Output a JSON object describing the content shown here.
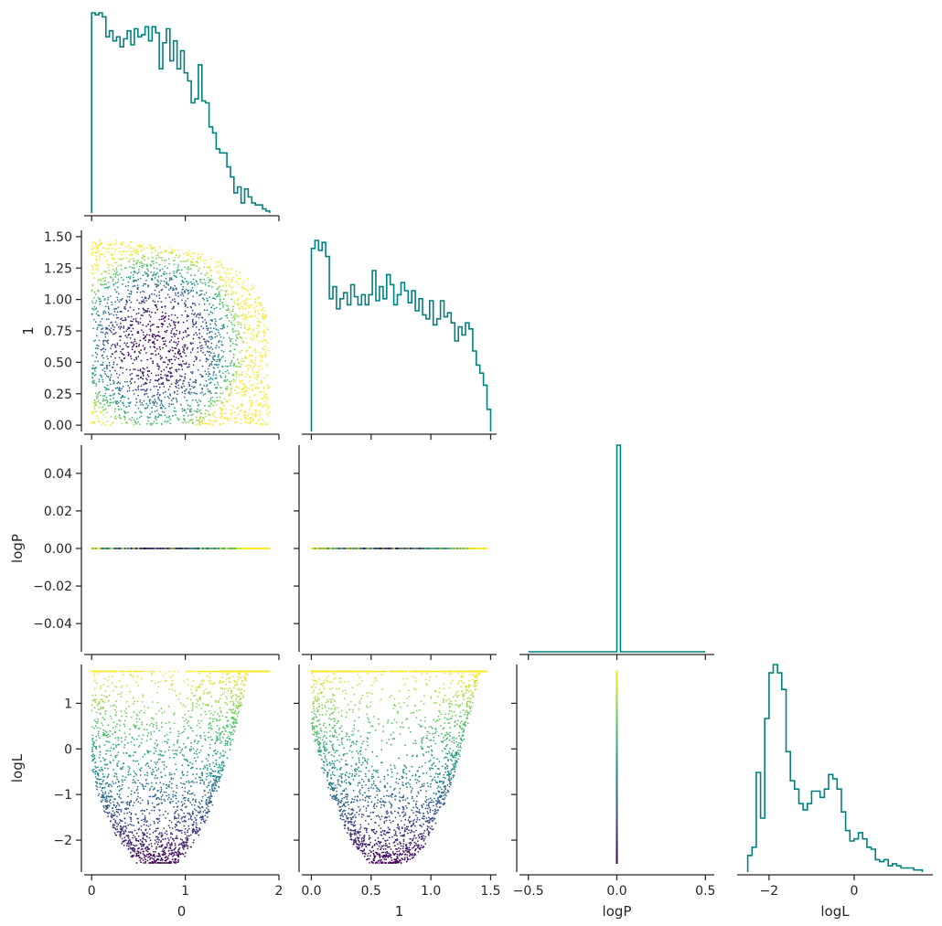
{
  "chart_data": {
    "type": "corner",
    "parameters": [
      "0",
      "1",
      "logP",
      "logL"
    ],
    "colors": {
      "histogram": "#008080",
      "colormap": "viridis",
      "colormap_stops": [
        "#440154",
        "#3b528b",
        "#21918c",
        "#5ec962",
        "#fde725"
      ],
      "color_by": "logL"
    },
    "grid": false,
    "axes": {
      "0": {
        "range": [
          -0.08,
          2.0
        ],
        "ticks": [
          0,
          1,
          2
        ],
        "tick_labels": [
          "0",
          "1",
          "2"
        ]
      },
      "1": {
        "range": [
          -0.08,
          1.55
        ],
        "ticks": [
          0.0,
          0.5,
          1.0,
          1.5
        ],
        "tick_labels": [
          "0.0",
          "0.5",
          "1.0",
          "1.5"
        ]
      },
      "logP": {
        "range": [
          -0.55,
          0.55
        ],
        "ticks": [
          -0.5,
          0.0,
          0.5
        ],
        "tick_labels": [
          "−0.5",
          "0.0",
          "0.5"
        ]
      },
      "logL": {
        "range": [
          -2.75,
          1.85
        ],
        "ticks": [
          -2,
          0
        ],
        "tick_labels": [
          "−2",
          "0"
        ]
      }
    },
    "y_axes": {
      "1": {
        "range": [
          -0.05,
          1.55
        ],
        "ticks": [
          0.0,
          0.25,
          0.5,
          0.75,
          1.0,
          1.25,
          1.5
        ],
        "tick_labels": [
          "0.00",
          "0.25",
          "0.50",
          "0.75",
          "1.00",
          "1.25",
          "1.50"
        ]
      },
      "logP": {
        "range": [
          -0.055,
          0.055
        ],
        "ticks": [
          -0.04,
          -0.02,
          0.0,
          0.02,
          0.04
        ],
        "tick_labels": [
          "−0.04",
          "−0.02",
          "0.00",
          "0.02",
          "0.04"
        ]
      },
      "logL": {
        "range": [
          -2.7,
          1.85
        ],
        "ticks": [
          -2,
          -1,
          0,
          1
        ],
        "tick_labels": [
          "−2",
          "−1",
          "0",
          "1"
        ]
      }
    },
    "diagonal_histograms": [
      {
        "param": "0",
        "bins": [
          0.0,
          1.9
        ],
        "counts": [
          1.0,
          0.99,
          1.0,
          0.98,
          0.88,
          0.91,
          0.86,
          0.88,
          0.83,
          0.87,
          0.91,
          0.84,
          0.92,
          0.88,
          0.89,
          0.93,
          0.86,
          0.93,
          0.9,
          0.72,
          0.85,
          0.92,
          0.76,
          0.86,
          0.72,
          0.81,
          0.7,
          0.66,
          0.55,
          0.57,
          0.74,
          0.56,
          0.55,
          0.43,
          0.4,
          0.32,
          0.3,
          0.3,
          0.23,
          0.18,
          0.1,
          0.13,
          0.05,
          0.12,
          0.08,
          0.05,
          0.04,
          0.04,
          0.02,
          0.01
        ]
      },
      {
        "param": "1",
        "bins": [
          0.0,
          1.5
        ],
        "counts": [
          0.91,
          0.95,
          0.9,
          0.94,
          0.87,
          0.66,
          0.72,
          0.61,
          0.66,
          0.69,
          0.63,
          0.73,
          0.67,
          0.63,
          0.68,
          0.63,
          0.68,
          0.8,
          0.65,
          0.72,
          0.66,
          0.78,
          0.73,
          0.63,
          0.68,
          0.74,
          0.7,
          0.64,
          0.7,
          0.6,
          0.66,
          0.58,
          0.56,
          0.65,
          0.53,
          0.56,
          0.65,
          0.57,
          0.59,
          0.54,
          0.45,
          0.52,
          0.48,
          0.54,
          0.51,
          0.4,
          0.33,
          0.29,
          0.23,
          0.11
        ]
      },
      {
        "param": "logP",
        "bins": [
          -0.5,
          0.5
        ],
        "counts": [
          0,
          0,
          0,
          0,
          0,
          0,
          0,
          0,
          0,
          0,
          0,
          0,
          0,
          0,
          0,
          0,
          0,
          0,
          0,
          0,
          0,
          0,
          0,
          0,
          0,
          1.0,
          0,
          0,
          0,
          0,
          0,
          0,
          0,
          0,
          0,
          0,
          0,
          0,
          0,
          0,
          0,
          0,
          0,
          0,
          0,
          0,
          0,
          0,
          0,
          0
        ]
      },
      {
        "param": "logL",
        "bins": [
          -2.5,
          1.6
        ],
        "counts": [
          0.08,
          0.12,
          0.48,
          0.26,
          0.74,
          0.96,
          1.0,
          0.96,
          0.88,
          0.58,
          0.44,
          0.4,
          0.33,
          0.3,
          0.33,
          0.39,
          0.39,
          0.36,
          0.4,
          0.47,
          0.45,
          0.4,
          0.29,
          0.2,
          0.15,
          0.16,
          0.19,
          0.16,
          0.12,
          0.11,
          0.06,
          0.05,
          0.06,
          0.03,
          0.04,
          0.03,
          0.02,
          0.02,
          0.02,
          0.01,
          0.01
        ]
      }
    ],
    "scatter_description": {
      "0_vs_1": "points fill a quarter-disc region bounded by 0≥0, 1 in [0,1.47], 0 ≲ 1.9",
      "0_vs_logP": "all points at logP = 0.00",
      "1_vs_logP": "all points at logP = 0.00",
      "0_vs_logL": "U-shaped band, minimum about −2.5 near 0 ≈ 0.7, up to ≈ 1.7",
      "1_vs_logL": "U-shaped band, minimum about −2.5 near 1 ≈ 0.65, up to ≈ 1.7 at edges",
      "logP_vs_logL": "vertical line at logP = 0.0 spanning logL −2.5 to 1.7"
    }
  }
}
